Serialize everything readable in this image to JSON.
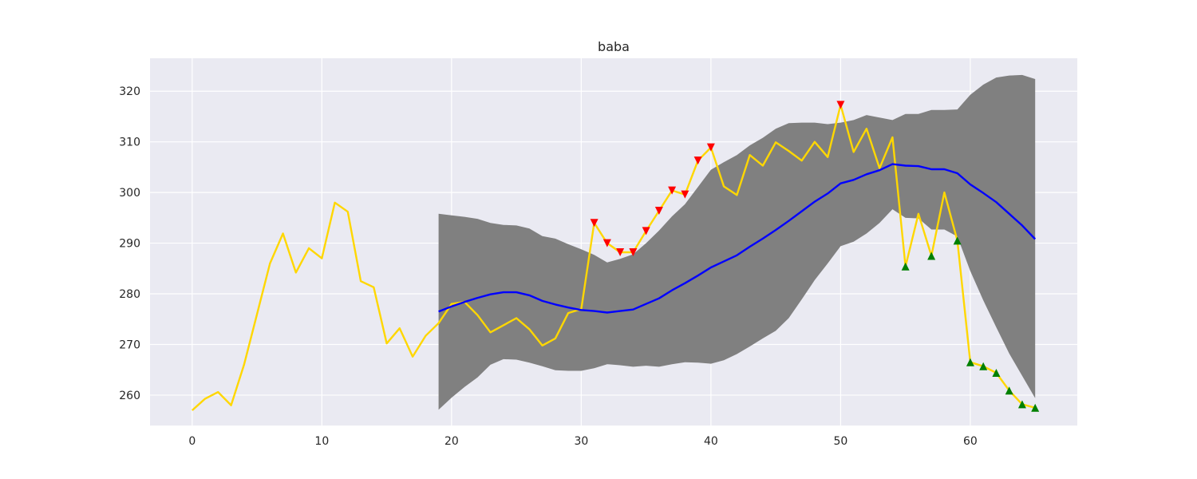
{
  "chart_data": {
    "type": "line",
    "title": "baba",
    "xlabel": "",
    "ylabel": "",
    "xlim": [
      -3.25,
      68.25
    ],
    "ylim": [
      254.0,
      326.5
    ],
    "x_ticks": [
      0,
      10,
      20,
      30,
      40,
      50,
      60
    ],
    "y_ticks": [
      260,
      270,
      280,
      290,
      300,
      310,
      320
    ],
    "grid": true,
    "background": "#eaeaf2",
    "series": [
      {
        "color": "#ffd700",
        "x": [
          0,
          1,
          2,
          3,
          4,
          5,
          6,
          7,
          8,
          9,
          10,
          11,
          12,
          13,
          14,
          15,
          16,
          17,
          18,
          19,
          20,
          21,
          22,
          23,
          24,
          25,
          26,
          27,
          28,
          29,
          30,
          31,
          32,
          33,
          34,
          35,
          36,
          37,
          38,
          39,
          40,
          41,
          42,
          43,
          44,
          45,
          46,
          47,
          48,
          49,
          50,
          51,
          52,
          53,
          54,
          55,
          56,
          57,
          58,
          59,
          60,
          61,
          62,
          63,
          64,
          65
        ],
        "values": [
          257.0,
          259.3,
          260.6,
          258.0,
          266.0,
          276.0,
          286.0,
          291.9,
          284.2,
          289.0,
          287.0,
          298.0,
          296.2,
          282.5,
          281.3,
          270.2,
          273.2,
          267.6,
          271.7,
          274.2,
          278.0,
          278.4,
          275.8,
          272.4,
          273.8,
          275.2,
          273.0,
          269.8,
          271.2,
          276.2,
          277.0,
          294.0,
          290.0,
          288.2,
          288.2,
          292.4,
          296.4,
          300.4,
          299.6,
          306.3,
          308.9,
          301.2,
          299.5,
          307.4,
          305.3,
          309.9,
          308.2,
          306.3,
          310.0,
          307.0,
          317.3,
          308.0,
          312.6,
          304.8,
          310.9,
          285.4,
          295.8,
          287.5,
          300.0,
          290.5,
          266.5,
          265.7,
          264.4,
          260.9,
          258.2,
          257.5
        ]
      },
      {
        "color": "#0000ff",
        "x": [
          19,
          20,
          21,
          22,
          23,
          24,
          25,
          26,
          27,
          28,
          29,
          30,
          31,
          32,
          33,
          34,
          35,
          36,
          37,
          38,
          39,
          40,
          41,
          42,
          43,
          44,
          45,
          46,
          47,
          48,
          49,
          50,
          51,
          52,
          53,
          54,
          55,
          56,
          57,
          58,
          59,
          60,
          61,
          62,
          63,
          64,
          65
        ],
        "values": [
          276.5,
          277.5,
          278.4,
          279.2,
          279.9,
          280.3,
          280.3,
          279.7,
          278.6,
          277.9,
          277.3,
          276.8,
          276.6,
          276.3,
          276.6,
          276.9,
          278.0,
          279.1,
          280.7,
          282.1,
          283.6,
          285.2,
          286.4,
          287.6,
          289.3,
          290.9,
          292.6,
          294.4,
          296.3,
          298.2,
          299.8,
          301.8,
          302.5,
          303.6,
          304.4,
          305.6,
          305.3,
          305.2,
          304.6,
          304.6,
          303.8,
          301.6,
          299.9,
          298.1,
          295.8,
          293.5,
          290.8
        ]
      }
    ],
    "band": {
      "color": "#808080",
      "x": [
        19,
        20,
        21,
        22,
        23,
        24,
        25,
        26,
        27,
        28,
        29,
        30,
        31,
        32,
        33,
        34,
        35,
        36,
        37,
        38,
        39,
        40,
        41,
        42,
        43,
        44,
        45,
        46,
        47,
        48,
        49,
        50,
        51,
        52,
        53,
        54,
        55,
        56,
        57,
        58,
        59,
        60,
        61,
        62,
        63,
        64,
        65
      ],
      "upper": [
        295.8,
        295.5,
        295.2,
        294.8,
        294.0,
        293.6,
        293.5,
        292.9,
        291.4,
        290.9,
        289.8,
        288.8,
        287.7,
        286.2,
        286.9,
        287.8,
        290.0,
        292.5,
        295.3,
        297.7,
        301.1,
        304.5,
        306.0,
        307.4,
        309.3,
        310.8,
        312.6,
        313.7,
        313.8,
        313.8,
        313.5,
        313.8,
        314.3,
        315.3,
        314.8,
        314.3,
        315.5,
        315.5,
        316.3,
        316.3,
        316.4,
        319.3,
        321.3,
        322.7,
        323.1,
        323.2,
        322.4
      ],
      "lower": [
        257.1,
        259.5,
        261.6,
        263.5,
        266.0,
        267.1,
        267.0,
        266.4,
        265.7,
        264.9,
        264.8,
        264.8,
        265.3,
        266.1,
        265.9,
        265.6,
        265.8,
        265.6,
        266.1,
        266.5,
        266.4,
        266.2,
        266.9,
        268.1,
        269.6,
        271.2,
        272.7,
        275.2,
        278.9,
        282.7,
        286.0,
        289.4,
        290.3,
        291.9,
        294.0,
        296.7,
        295.0,
        294.9,
        292.7,
        292.7,
        291.3,
        284.5,
        278.7,
        273.4,
        268.2,
        263.8,
        259.4
      ]
    },
    "sell_markers": {
      "color": "#ff0000",
      "shape": "triangle-down",
      "x": [
        31,
        32,
        33,
        34,
        35,
        36,
        37,
        38,
        39,
        40,
        50
      ],
      "values": [
        294.0,
        290.0,
        288.2,
        288.2,
        292.4,
        296.4,
        300.4,
        299.6,
        306.3,
        308.9,
        317.3
      ]
    },
    "buy_markers": {
      "color": "#008000",
      "shape": "triangle-up",
      "x": [
        55,
        57,
        59,
        60,
        61,
        62,
        63,
        64,
        65
      ],
      "values": [
        285.4,
        287.5,
        290.5,
        266.5,
        265.7,
        264.4,
        260.9,
        258.2,
        257.5
      ]
    }
  }
}
